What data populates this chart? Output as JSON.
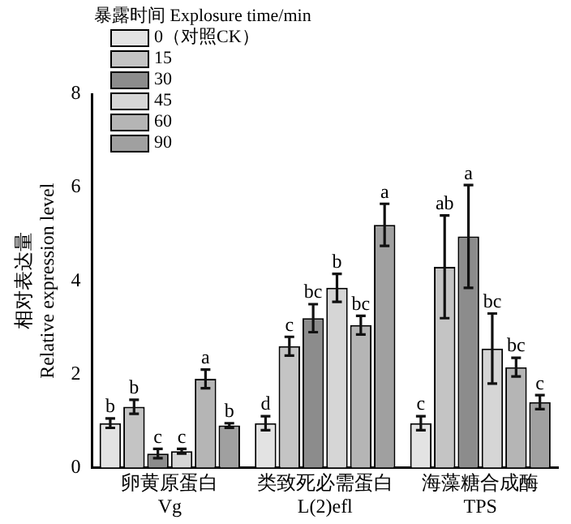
{
  "chart_data": {
    "type": "bar",
    "ylabel": "相对表达量\nRelative expression level",
    "legend_title": "暴露时间 Explosure time/min",
    "categories": [
      "卵黄原蛋白\nVg",
      "类致死必需蛋白\nL(2)efl",
      "海藻糖合成酶\nTPS"
    ],
    "series": [
      {
        "name": "0（对照CK）",
        "color": "#e3e3e3",
        "values": [
          0.95,
          0.95,
          0.95
        ],
        "errors": [
          0.1,
          0.15,
          0.15
        ],
        "value_labels": [
          "b",
          "d",
          "c"
        ]
      },
      {
        "name": "15",
        "color": "#c4c4c4",
        "values": [
          1.3,
          2.6,
          4.3
        ],
        "errors": [
          0.15,
          0.2,
          1.1
        ],
        "value_labels": [
          "b",
          "c",
          "ab"
        ]
      },
      {
        "name": "30",
        "color": "#8c8c8c",
        "values": [
          0.3,
          3.2,
          4.95
        ],
        "errors": [
          0.1,
          0.3,
          1.1
        ],
        "value_labels": [
          "c",
          "bc",
          "a"
        ]
      },
      {
        "name": "45",
        "color": "#d6d6d6",
        "values": [
          0.35,
          3.85,
          2.55
        ],
        "errors": [
          0.05,
          0.3,
          0.75
        ],
        "value_labels": [
          "c",
          "b",
          "bc"
        ]
      },
      {
        "name": "60",
        "color": "#b5b5b5",
        "values": [
          1.9,
          3.05,
          2.15
        ],
        "errors": [
          0.2,
          0.2,
          0.2
        ],
        "value_labels": [
          "a",
          "bc",
          "bc"
        ]
      },
      {
        "name": "90",
        "color": "#a0a0a0",
        "values": [
          0.9,
          5.2,
          1.4
        ],
        "errors": [
          0.05,
          0.45,
          0.15
        ],
        "value_labels": [
          "b",
          "a",
          "c"
        ]
      }
    ],
    "ylim": [
      0,
      8
    ],
    "yticks": [
      0,
      2,
      4,
      6,
      8
    ],
    "grid": false,
    "legend": "top left"
  }
}
